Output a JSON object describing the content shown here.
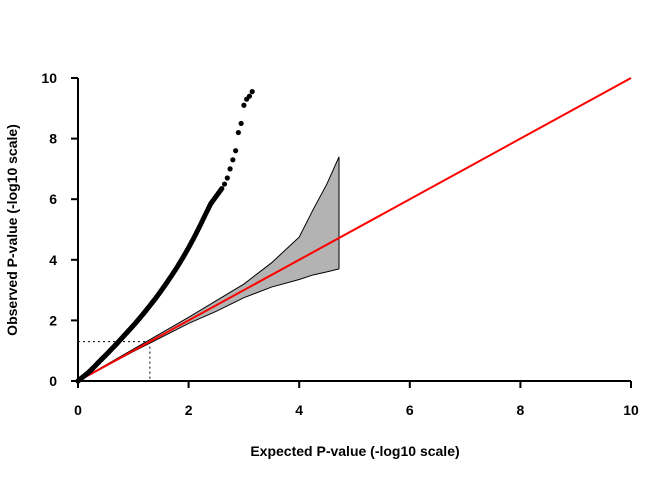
{
  "chart_data": {
    "type": "scatter",
    "title": "",
    "xlabel": "Expected P-value (-log10 scale)",
    "ylabel": "Observed P-value (-log10 scale)",
    "xlim": [
      0,
      10
    ],
    "ylim": [
      0,
      10
    ],
    "x_ticks": [
      "0",
      "2",
      "4",
      "6",
      "8",
      "10"
    ],
    "y_ticks": [
      "0",
      "2",
      "4",
      "6",
      "8",
      "10"
    ],
    "grid": false,
    "legend": "none",
    "series": [
      {
        "kind": "points",
        "color": "#000000",
        "x": [
          0.0,
          0.1,
          0.2,
          0.3,
          0.4,
          0.5,
          0.6,
          0.7,
          0.8,
          0.9,
          1.0,
          1.1,
          1.2,
          1.3,
          1.4,
          1.5,
          1.6,
          1.7,
          1.8,
          1.9,
          2.0,
          2.1,
          2.2,
          2.3,
          2.4,
          2.5,
          2.6,
          2.65,
          2.7,
          2.75,
          2.8,
          2.85,
          2.9,
          2.95,
          3.0,
          3.05,
          3.1,
          3.15
        ],
        "y": [
          0.0,
          0.15,
          0.3,
          0.48,
          0.67,
          0.85,
          1.04,
          1.23,
          1.43,
          1.63,
          1.83,
          2.04,
          2.26,
          2.49,
          2.72,
          2.97,
          3.23,
          3.5,
          3.78,
          4.08,
          4.4,
          4.74,
          5.1,
          5.48,
          5.85,
          6.1,
          6.35,
          6.5,
          6.7,
          7.0,
          7.3,
          7.6,
          8.2,
          8.5,
          9.1,
          9.3,
          9.4,
          9.55
        ]
      },
      {
        "kind": "line",
        "color": "#ff0000",
        "x": [
          0,
          10
        ],
        "y": [
          0,
          10
        ]
      }
    ],
    "confidence_band": {
      "color": "#b3b3b3",
      "x": [
        0,
        1,
        2,
        2.5,
        3,
        3.5,
        4,
        4.25,
        4.5,
        4.72
      ],
      "upper": [
        0,
        1.05,
        2.1,
        2.65,
        3.2,
        3.9,
        4.75,
        5.65,
        6.5,
        7.4
      ],
      "lower": [
        0,
        0.97,
        1.9,
        2.3,
        2.75,
        3.1,
        3.35,
        3.5,
        3.6,
        3.7
      ]
    },
    "reference": {
      "value": 1.3,
      "style": "dotted"
    }
  }
}
